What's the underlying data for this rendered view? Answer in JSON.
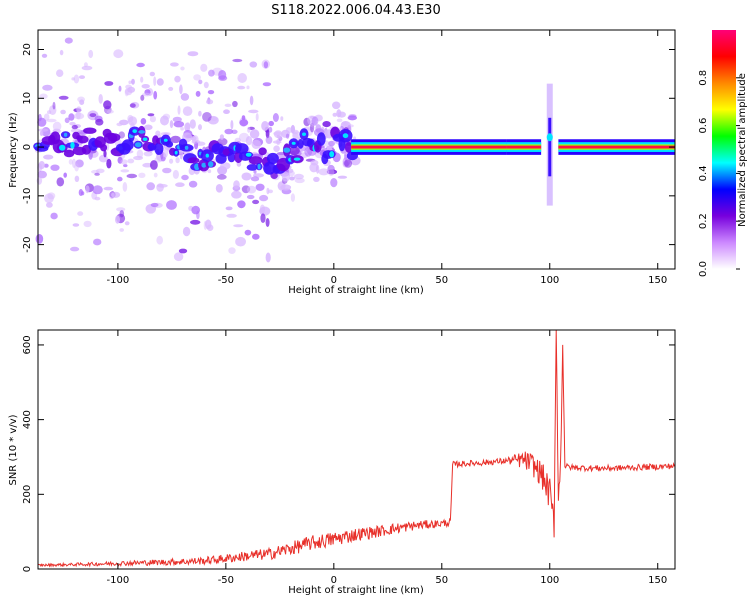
{
  "chart_data": [
    {
      "type": "heatmap",
      "title": "S118.2022.006.04.43.E30",
      "xlabel": "Height of straight line (km)",
      "ylabel": "Frequency (Hz)",
      "xlim": [
        -137,
        158
      ],
      "ylim": [
        -25,
        24
      ],
      "x_ticks": [
        -100,
        -50,
        0,
        50,
        100,
        150
      ],
      "y_ticks": [
        -20,
        -10,
        0,
        10,
        20
      ],
      "colorbar": {
        "label": "Normalized spectral amplitude",
        "range": [
          0,
          1
        ],
        "ticks": [
          "0.0",
          "0.2",
          "0.4",
          "0.6",
          "0.8"
        ],
        "colors": [
          "#ffffff",
          "#cc88ff",
          "#7700dd",
          "#0000ff",
          "#00ffff",
          "#00ff00",
          "#ffff00",
          "#ff8800",
          "#ff0000",
          "#ff0077"
        ]
      },
      "ridge": [
        {
          "x": -130,
          "f": 1.0
        },
        {
          "x": -120,
          "f": 0.5
        },
        {
          "x": -110,
          "f": 2.0
        },
        {
          "x": -100,
          "f": 1.0
        },
        {
          "x": -90,
          "f": 2.5
        },
        {
          "x": -80,
          "f": 1.0
        },
        {
          "x": -70,
          "f": -1.0
        },
        {
          "x": -60,
          "f": -3.0
        },
        {
          "x": -50,
          "f": 0.0
        },
        {
          "x": -40,
          "f": -2.0
        },
        {
          "x": -30,
          "f": -3.0
        },
        {
          "x": -25,
          "f": -2.5
        },
        {
          "x": -20,
          "f": -1.5
        },
        {
          "x": -15,
          "f": 0.0
        },
        {
          "x": -12,
          "f": 2.0
        },
        {
          "x": -8,
          "f": 0.5
        },
        {
          "x": -4,
          "f": -1.0
        },
        {
          "x": 0,
          "f": 1.0
        },
        {
          "x": 3,
          "f": 2.0
        },
        {
          "x": 6,
          "f": 0.5
        },
        {
          "x": 10,
          "f": 0.0
        },
        {
          "x": 50,
          "f": 0.0
        },
        {
          "x": 80,
          "f": 0.0
        },
        {
          "x": 95,
          "f": 0.5
        },
        {
          "x": 100,
          "f": 2.0
        },
        {
          "x": 105,
          "f": 0.0
        },
        {
          "x": 158,
          "f": 0.0
        }
      ],
      "spike": {
        "x": 100,
        "f_range": [
          -12,
          13
        ]
      }
    },
    {
      "type": "line",
      "xlabel": "Height of straight line (km)",
      "ylabel": "SNR (10 * v/v)",
      "xlim": [
        -137,
        158
      ],
      "ylim": [
        0,
        640
      ],
      "x_ticks": [
        -100,
        -50,
        0,
        50,
        100,
        150
      ],
      "y_ticks": [
        0,
        200,
        400,
        600
      ],
      "color": "#e8302a",
      "x": [
        -137,
        -120,
        -100,
        -80,
        -60,
        -50,
        -40,
        -30,
        -20,
        -10,
        0,
        10,
        20,
        30,
        40,
        50,
        54,
        55,
        60,
        70,
        80,
        88,
        92,
        96,
        98,
        100,
        102,
        103,
        104,
        105,
        106,
        107,
        110,
        120,
        130,
        140,
        150,
        158
      ],
      "y": [
        10,
        12,
        15,
        18,
        22,
        28,
        35,
        40,
        55,
        70,
        80,
        92,
        100,
        110,
        118,
        122,
        125,
        280,
        282,
        285,
        290,
        292,
        280,
        255,
        230,
        200,
        120,
        640,
        180,
        280,
        600,
        275,
        272,
        270,
        270,
        272,
        274,
        276
      ],
      "noise": [
        3,
        4,
        6,
        8,
        10,
        12,
        14,
        16,
        18,
        20,
        20,
        18,
        16,
        14,
        12,
        10,
        10,
        8,
        8,
        8,
        8,
        25,
        30,
        35,
        40,
        45,
        40,
        0,
        40,
        30,
        0,
        8,
        8,
        8,
        8,
        8,
        8,
        8
      ]
    }
  ]
}
